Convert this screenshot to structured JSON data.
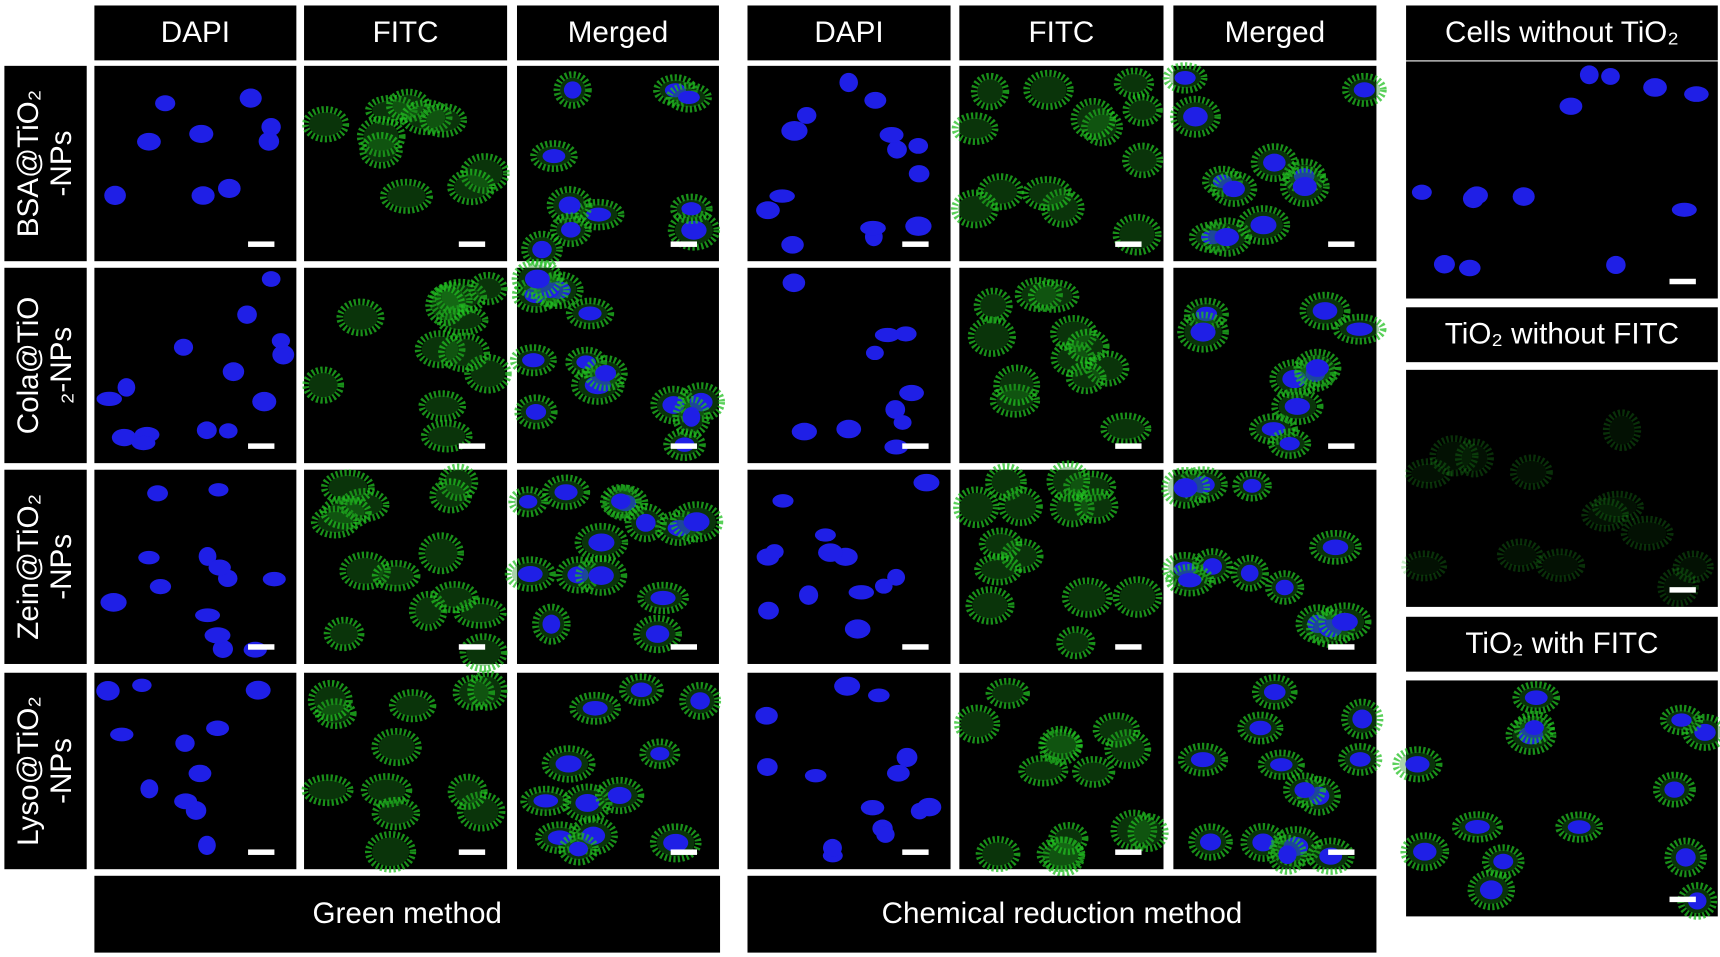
{
  "headers": {
    "green": [
      "DAPI",
      "FITC",
      "Merged"
    ],
    "chemical": [
      "DAPI",
      "FITC",
      "Merged"
    ]
  },
  "rows": [
    [
      "BSA@TiO₂",
      "-NPs"
    ],
    [
      "Cola@TiO",
      "₂-NPs"
    ],
    [
      "Zein@TiO₂",
      "-NPs"
    ],
    [
      "Lyso@TiO₂",
      "-NPs"
    ]
  ],
  "methods": [
    "Green method",
    "Chemical reduction method"
  ],
  "controls": [
    "Cells without TiO₂",
    "TiO₂ without FITC",
    "TiO₂ with FITC"
  ]
}
